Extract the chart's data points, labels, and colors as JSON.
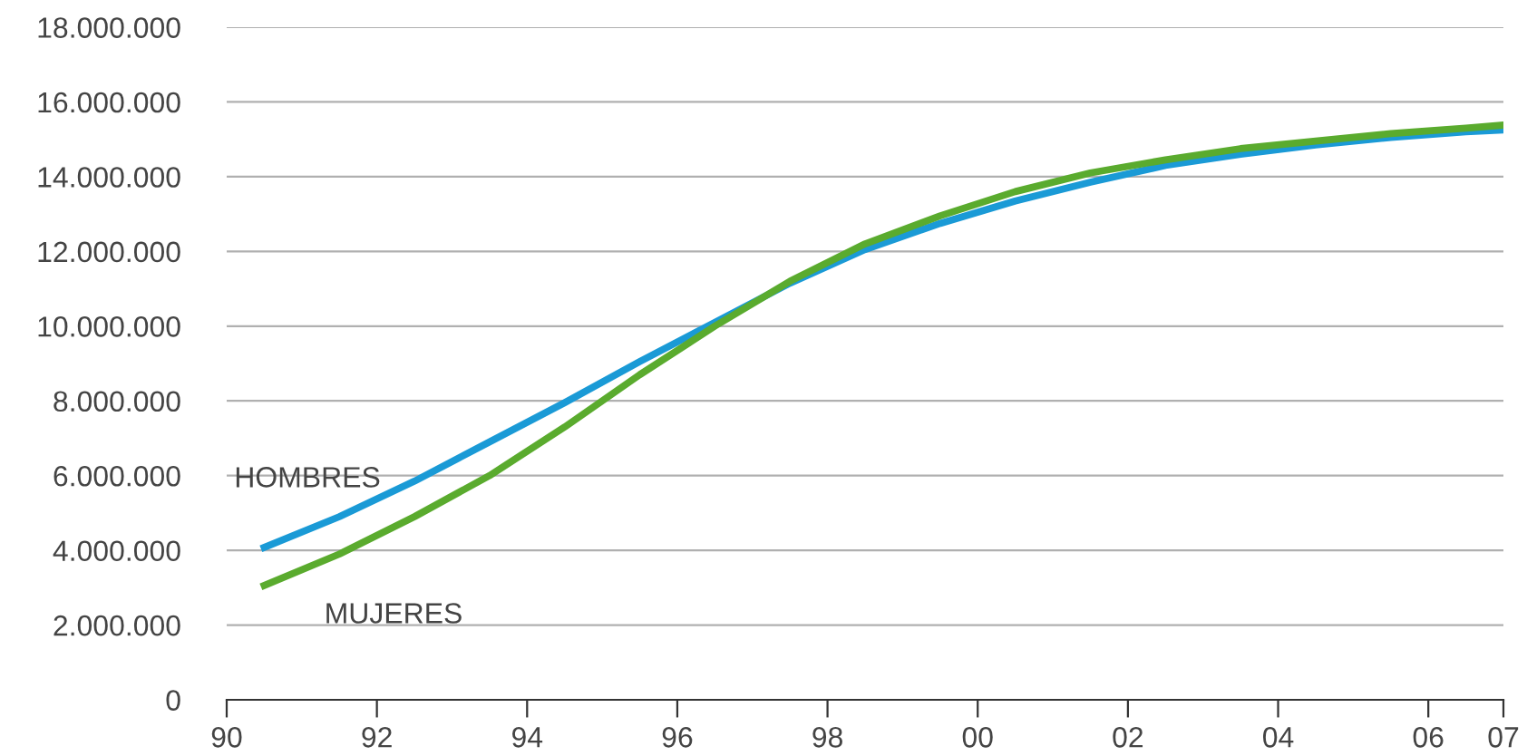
{
  "chart_data": {
    "type": "line",
    "x": [
      1990.5,
      1991.5,
      1992.5,
      1993.5,
      1994.5,
      1995.5,
      1996.5,
      1997.5,
      1998.5,
      1999.5,
      2000.5,
      2001.5,
      2002.5,
      2003.5,
      2004.5,
      2005.5,
      2006.5,
      2007
    ],
    "series": [
      {
        "name": "HOMBRES",
        "color": "#1a9ad6",
        "values": [
          4080000,
          4900000,
          5850000,
          6900000,
          7950000,
          9050000,
          10100000,
          11150000,
          12050000,
          12750000,
          13350000,
          13850000,
          14300000,
          14600000,
          14850000,
          15050000,
          15200000,
          15250000
        ]
      },
      {
        "name": "MUJERES",
        "color": "#5aab2e",
        "values": [
          3060000,
          3900000,
          4900000,
          6000000,
          7300000,
          8700000,
          10000000,
          11200000,
          12200000,
          12950000,
          13600000,
          14100000,
          14450000,
          14750000,
          14950000,
          15150000,
          15300000,
          15380000
        ]
      }
    ],
    "xlim": [
      1990,
      2007
    ],
    "xticks": [
      {
        "value": 1990,
        "label": "90"
      },
      {
        "value": 1992,
        "label": "92"
      },
      {
        "value": 1994,
        "label": "94"
      },
      {
        "value": 1996,
        "label": "96"
      },
      {
        "value": 1998,
        "label": "98"
      },
      {
        "value": 2000,
        "label": "00"
      },
      {
        "value": 2002,
        "label": "02"
      },
      {
        "value": 2004,
        "label": "04"
      },
      {
        "value": 2006,
        "label": "06"
      },
      {
        "value": 2007,
        "label": "07"
      }
    ],
    "ylim": [
      0,
      18000000
    ],
    "yticks": [
      0,
      {
        "value": 2000000,
        "label": "2.000.000"
      },
      {
        "value": 4000000,
        "label": "4.000.000"
      },
      {
        "value": 6000000,
        "label": "6.000.000"
      },
      {
        "value": 8000000,
        "label": "8.000.000"
      },
      {
        "value": 10000000,
        "label": "10.000.000"
      },
      {
        "value": 12000000,
        "label": "12.000.000"
      },
      {
        "value": 14000000,
        "label": "14.000.000"
      },
      {
        "value": 16000000,
        "label": "16.000.000"
      },
      {
        "value": 18000000,
        "label": "18.000.000"
      }
    ],
    "grid": "y",
    "legend": false,
    "marker": "none",
    "line_style": "solid"
  }
}
